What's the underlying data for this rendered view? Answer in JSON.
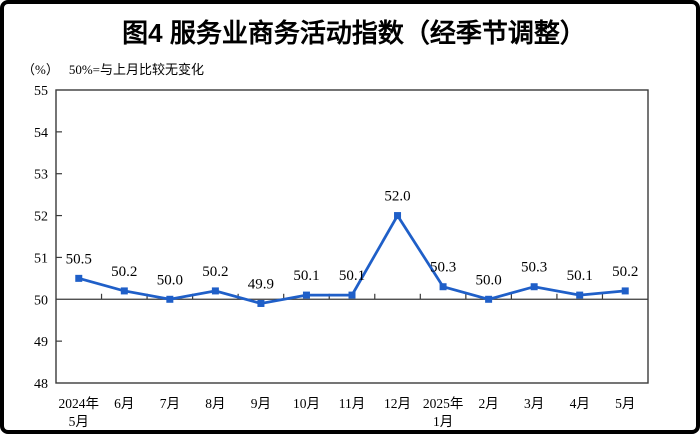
{
  "frame": {
    "border_color": "#000000",
    "background_color": "#ffffff"
  },
  "header": {
    "title": "图4 服务业商务活动指数（经季节调整）"
  },
  "subheader": {
    "unit_label": "（%）",
    "baseline_note": "50%=与上月比较无变化"
  },
  "chart_data": {
    "type": "line",
    "title": "图4 服务业商务活动指数（经季节调整）",
    "series_name": "服务业商务活动指数",
    "unit": "%",
    "annotation": "50%=与上月比较无变化",
    "categories": [
      "2024年\n5月",
      "6月",
      "7月",
      "8月",
      "9月",
      "10月",
      "11月",
      "12月",
      "2025年\n1月",
      "2月",
      "3月",
      "4月",
      "5月"
    ],
    "values": [
      50.5,
      50.2,
      50.0,
      50.2,
      49.9,
      50.1,
      50.1,
      52.0,
      50.3,
      50.0,
      50.3,
      50.1,
      50.2
    ],
    "data_labels": [
      "50.5",
      "50.2",
      "50.0",
      "50.2",
      "49.9",
      "50.1",
      "50.1",
      "52.0",
      "50.3",
      "50.0",
      "50.3",
      "50.1",
      "50.2"
    ],
    "ylim": [
      48,
      55
    ],
    "y_ticks": [
      48,
      49,
      50,
      51,
      52,
      53,
      54,
      55
    ],
    "reference_line_y": 50,
    "grid": false,
    "legend": "none",
    "line_color": "#1F5FC8",
    "marker": "square",
    "marker_color": "#1F5FC8",
    "axis_color": "#3a3a3a",
    "text_color": "#000000"
  }
}
